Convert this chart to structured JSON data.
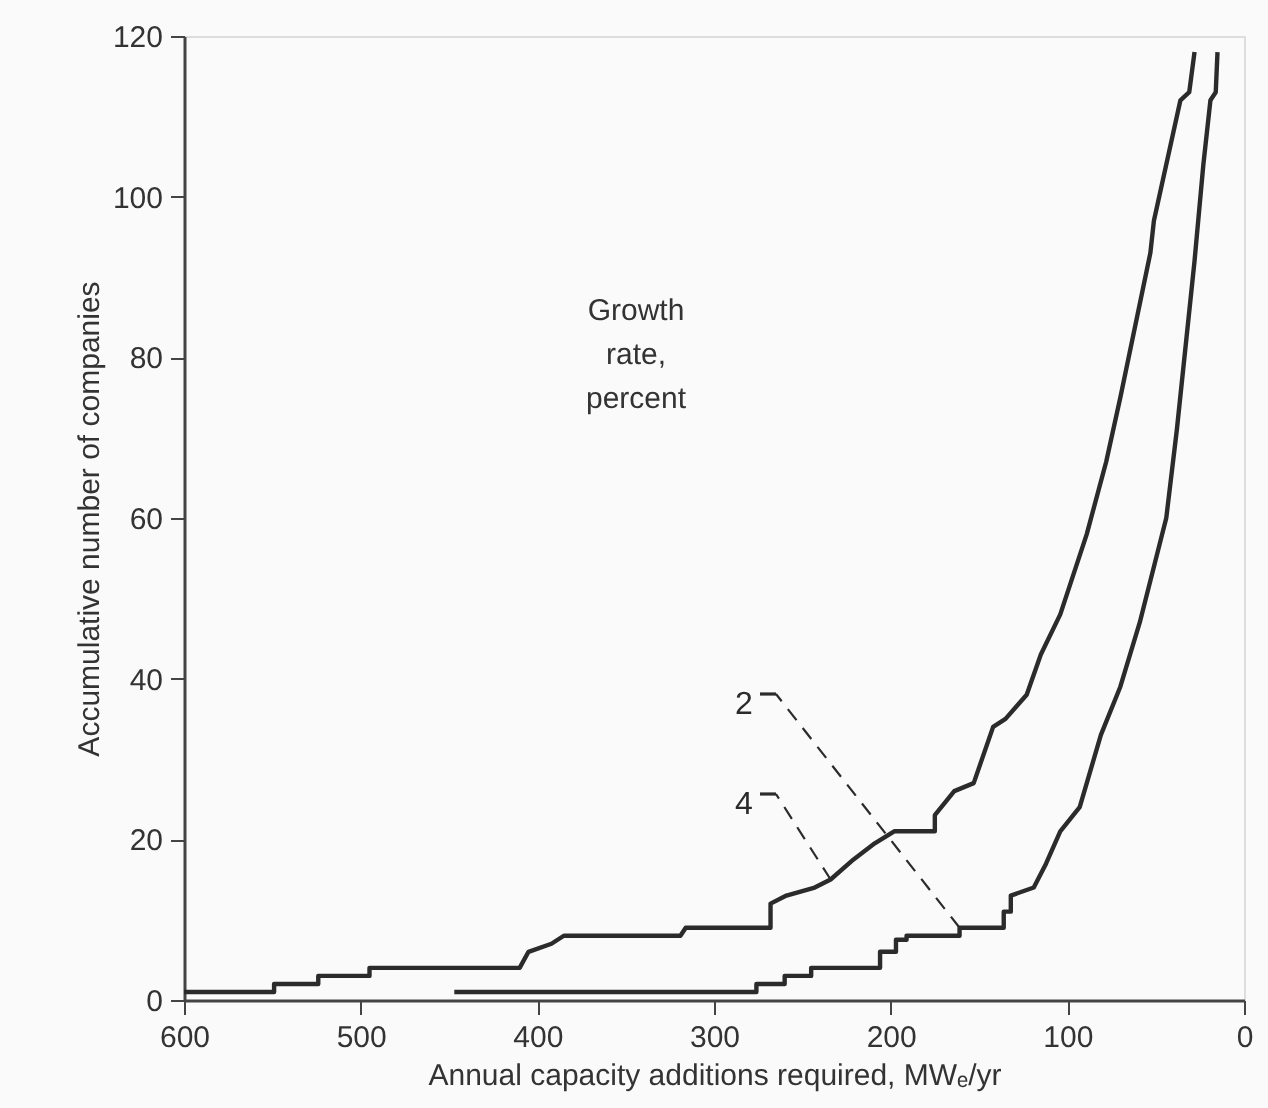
{
  "chart_data": {
    "type": "line",
    "xlabel": "Annual capacity additions required, MWₑ/yr",
    "ylabel": "Accumulative number of companies",
    "legend_title": "Growth rate, percent",
    "xlim": [
      600,
      0
    ],
    "xticks": [
      600,
      500,
      400,
      300,
      200,
      100,
      0
    ],
    "ylim": [
      0,
      120
    ],
    "yticks": [
      0,
      20,
      40,
      60,
      80,
      100,
      120
    ],
    "grid": false,
    "legend": "bottom",
    "marker": "none",
    "line_style": "solid",
    "series": [
      {
        "name": "2",
        "color": "#2b2b2b",
        "x": [
          447,
          276,
          276,
          260,
          260,
          245,
          245,
          206,
          206,
          197,
          197,
          191,
          191,
          161,
          161,
          136,
          136,
          132,
          132,
          119,
          112,
          104,
          93,
          81,
          70,
          59,
          44,
          38,
          28,
          23,
          19,
          16,
          15
        ],
        "values": [
          1,
          1,
          2,
          2,
          3,
          3,
          4,
          4,
          6,
          6,
          7.5,
          7.5,
          8,
          8,
          9,
          9,
          11,
          11,
          13,
          14,
          17,
          21,
          24,
          33,
          39,
          47,
          60,
          71,
          92,
          104,
          112,
          113,
          118
        ]
      },
      {
        "name": "4",
        "color": "#2b2b2b",
        "x": [
          600,
          549,
          549,
          524,
          524,
          495,
          495,
          410,
          405,
          392,
          385,
          319,
          316,
          268,
          268,
          259,
          243,
          234,
          221,
          209,
          198,
          175,
          175,
          164,
          153,
          142,
          135,
          123,
          115,
          104,
          89,
          78,
          70,
          53,
          51,
          36,
          31,
          28
        ],
        "values": [
          1,
          1,
          2,
          2,
          3,
          3,
          4,
          4,
          6,
          7,
          8,
          8,
          9,
          9,
          12,
          13,
          14,
          15,
          17.5,
          19.5,
          21,
          21,
          23,
          26,
          27,
          34,
          35,
          38,
          43,
          48,
          58,
          67,
          75,
          93,
          97,
          112,
          113,
          118
        ]
      }
    ]
  }
}
